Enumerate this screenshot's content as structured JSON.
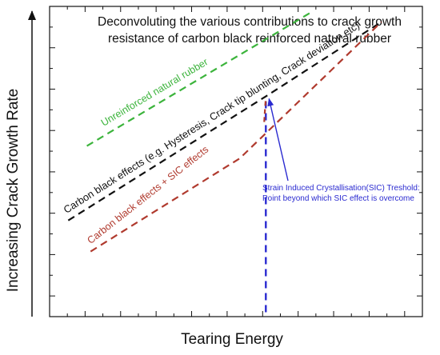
{
  "chart_data": {
    "type": "line",
    "title_lines": [
      "Deconvoluting the various contributions to crack growth",
      "resistance of carbon black reinforced natural rubber"
    ],
    "xlabel": "Tearing Energy",
    "ylabel": "Increasing Crack Growth Rate",
    "xlim": [
      0,
      100
    ],
    "ylim": [
      0,
      100
    ],
    "grid": false,
    "series": [
      {
        "name": "Unreinforced natural rubber",
        "color": "#3cb43c",
        "dash": "dashed",
        "x": [
          10,
          70
        ],
        "y": [
          55,
          98
        ]
      },
      {
        "name": "Carbon black effects (e.g. Hysteresis, Crack tip blunting, Crack deviation etc)",
        "color": "#111111",
        "dash": "dashed",
        "x": [
          5,
          58,
          89
        ],
        "y": [
          31,
          71,
          95
        ]
      },
      {
        "name": "Carbon black effects + SIC effects",
        "color": "#b03a2e",
        "dash": "dashed",
        "x": [
          11,
          51,
          89
        ],
        "y": [
          21,
          51,
          95
        ]
      }
    ],
    "threshold": {
      "x": 58,
      "y_top": 71,
      "color": "#2a2ad0",
      "label_lines": [
        "Strain Induced Crystallisation(SIC) Treshold:",
        "Point beyond which SIC effect is overcome"
      ]
    }
  }
}
